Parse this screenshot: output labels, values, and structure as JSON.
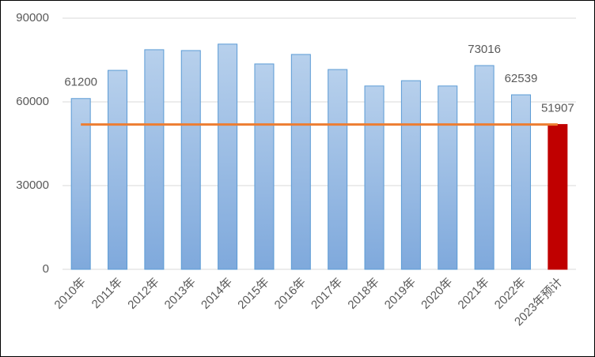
{
  "chart_data": {
    "type": "bar",
    "categories": [
      "2010年",
      "2011年",
      "2012年",
      "2013年",
      "2014年",
      "2015年",
      "2016年",
      "2017年",
      "2018年",
      "2019年",
      "2020年",
      "2021年",
      "2022年",
      "2023年预计"
    ],
    "values": [
      61200,
      71300,
      78700,
      78400,
      80700,
      73600,
      77000,
      71600,
      65700,
      67600,
      65700,
      73016,
      62539,
      51907
    ],
    "show_label": [
      true,
      false,
      false,
      false,
      false,
      false,
      false,
      false,
      false,
      false,
      false,
      true,
      true,
      true
    ],
    "colors": [
      "#5b9bd5",
      "#5b9bd5",
      "#5b9bd5",
      "#5b9bd5",
      "#5b9bd5",
      "#5b9bd5",
      "#5b9bd5",
      "#5b9bd5",
      "#5b9bd5",
      "#5b9bd5",
      "#5b9bd5",
      "#5b9bd5",
      "#5b9bd5",
      "#c00000"
    ],
    "reference_line_color": "#ed7d31",
    "ylim": [
      0,
      90000
    ],
    "yticks": [
      0,
      30000,
      60000,
      90000
    ],
    "grid": true
  }
}
